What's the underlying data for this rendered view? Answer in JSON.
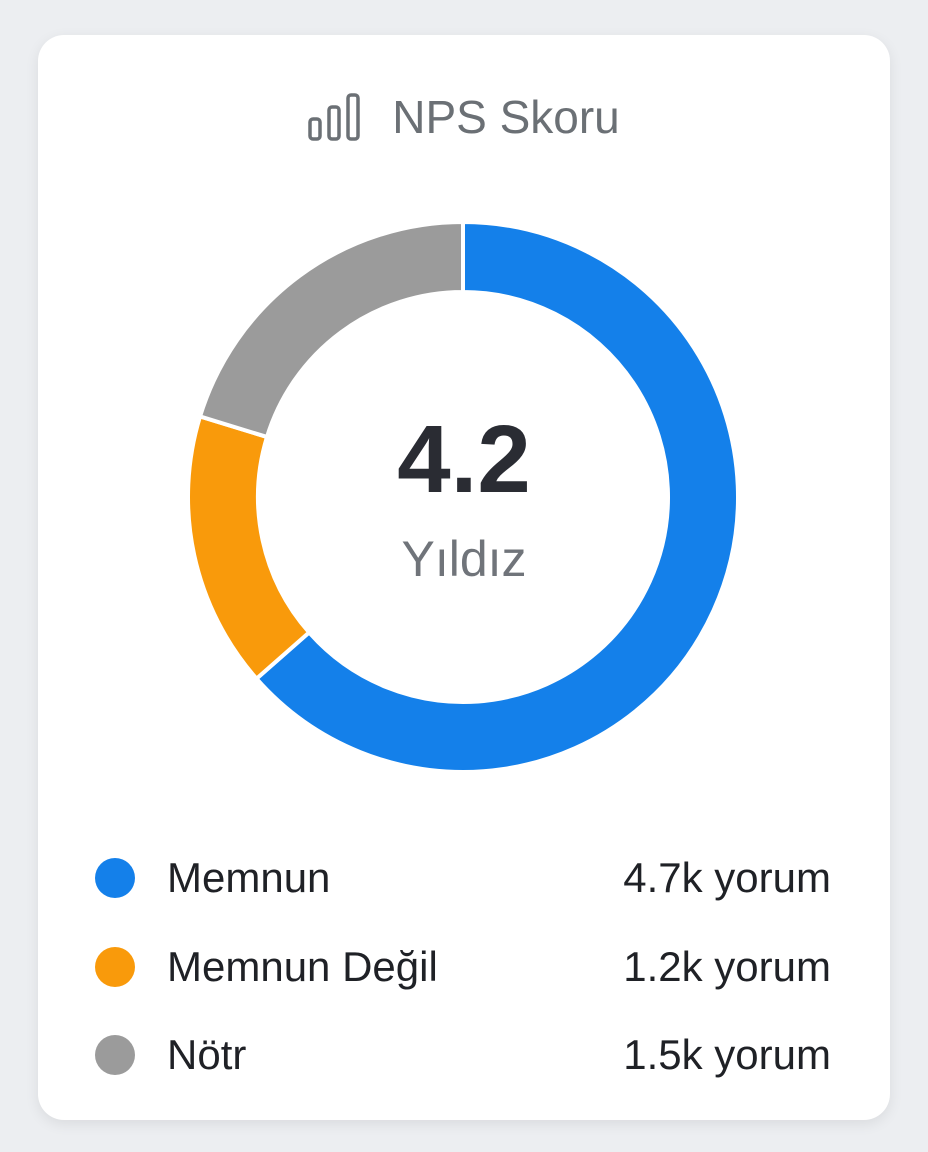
{
  "header": {
    "title": "NPS Skoru",
    "icon": "bar-chart-icon"
  },
  "center": {
    "value": "4.2",
    "label": "Yıldız"
  },
  "chart_data": {
    "type": "pie",
    "variant": "donut",
    "title": "NPS Skoru",
    "categories": [
      "Memnun",
      "Memnun Değil",
      "Nötr"
    ],
    "values": [
      4700,
      1200,
      1500
    ],
    "colors": [
      "#1480ea",
      "#f99a0b",
      "#9b9b9b"
    ],
    "legend_placement": "bottom"
  },
  "legend": [
    {
      "label": "Memnun",
      "value": "4.7k yorum",
      "color": "#1480ea"
    },
    {
      "label": "Memnun Değil",
      "value": "1.2k yorum",
      "color": "#f99a0b"
    },
    {
      "label": "Nötr",
      "value": "1.5k yorum",
      "color": "#9b9b9b"
    }
  ]
}
